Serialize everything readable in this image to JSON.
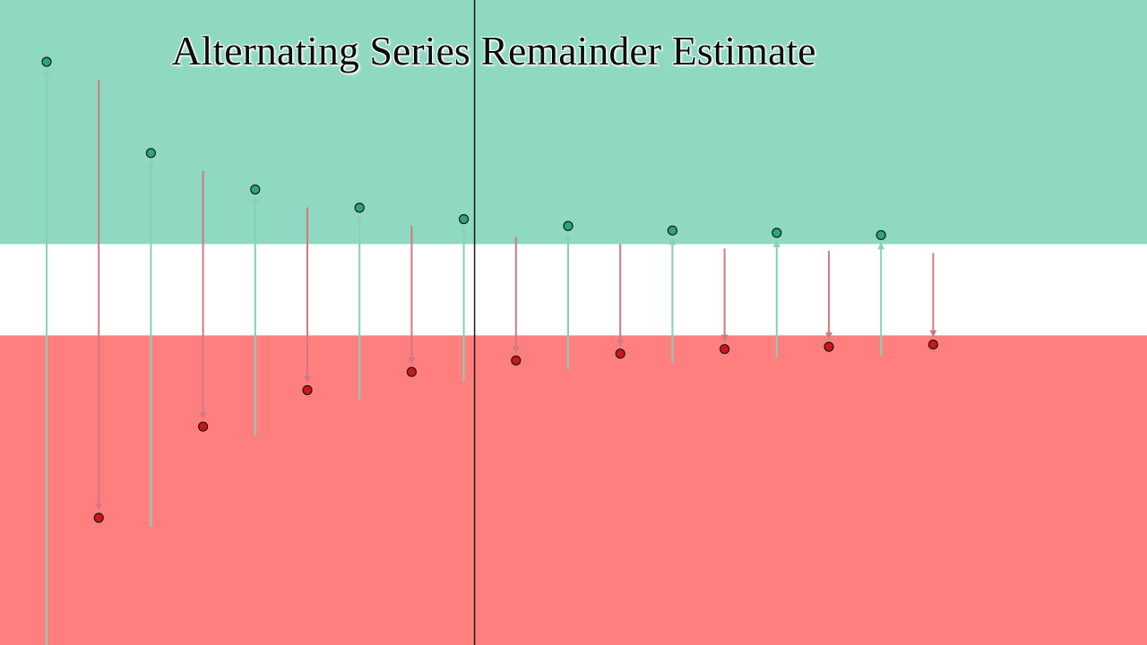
{
  "title": "Alternating Series Remainder Estimate",
  "colors": {
    "upper_band": "#8fd9c2",
    "middle_band": "#ffffff",
    "lower_band": "#ff7f7f",
    "up_point": "#2aa57c",
    "down_point": "#cc1616",
    "up_arrow": "#84d2b7",
    "down_arrow": "#d07a80",
    "axis_line": "#1a1a1a"
  },
  "chart_data": {
    "type": "scatter",
    "description_units": "partial sums S_n of an alternating series converging to a limit L; upper band = values above L + |R|, lower band = below L - |R|",
    "n": [
      1,
      2,
      3,
      4,
      5,
      6,
      7,
      8,
      9,
      10,
      11,
      12,
      13,
      14,
      15,
      16,
      17,
      18
    ],
    "partial_sums": [
      1.0,
      0.0,
      0.8,
      0.2,
      0.72,
      0.28,
      0.68,
      0.32,
      0.655,
      0.345,
      0.64,
      0.36,
      0.63,
      0.37,
      0.625,
      0.375,
      0.62,
      0.38
    ],
    "limit": 0.5,
    "band_upper": 0.6,
    "band_lower": 0.4,
    "marker_index": 8,
    "ylim": [
      -0.2,
      1.05
    ]
  }
}
